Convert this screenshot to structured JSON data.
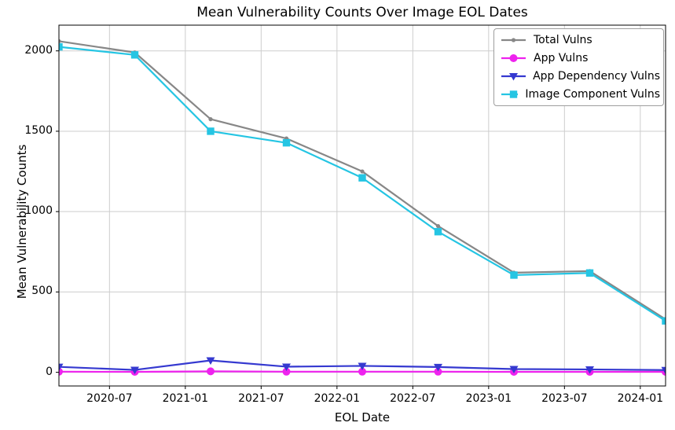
{
  "chart_data": {
    "type": "line",
    "title": "Mean Vulnerability Counts Over Image EOL Dates",
    "xlabel": "EOL Date",
    "ylabel": "Mean Vulnerability Counts",
    "x_dates": [
      "2020-03",
      "2020-09",
      "2021-03",
      "2021-09",
      "2022-03",
      "2022-09",
      "2023-03",
      "2023-09",
      "2024-03"
    ],
    "x_months": [
      0,
      6,
      12,
      18,
      24,
      30,
      36,
      42,
      48
    ],
    "xlim_months": [
      0,
      48
    ],
    "x_tick_labels": [
      "2020-07",
      "2021-01",
      "2021-07",
      "2022-01",
      "2022-07",
      "2023-01",
      "2023-07",
      "2024-01"
    ],
    "x_tick_months": [
      4,
      10,
      16,
      22,
      28,
      34,
      40,
      46
    ],
    "yticks": [
      0,
      500,
      1000,
      1500,
      2000
    ],
    "ytick_labels": [
      "0",
      "500",
      "1000",
      "1500",
      "2000"
    ],
    "ylim": [
      -85,
      2160
    ],
    "grid": true,
    "grid_color": "#cdcdcd",
    "axis_color": "#000000",
    "legend_position": "top-right",
    "series": [
      {
        "name": "Total Vulns",
        "color": "#878787",
        "marker": "dot",
        "values": [
          2060,
          1990,
          1575,
          1455,
          1250,
          910,
          620,
          630,
          330
        ]
      },
      {
        "name": "App Vulns",
        "color": "#ee22ee",
        "marker": "circle",
        "values": [
          4,
          3,
          6,
          4,
          4,
          4,
          3,
          3,
          3
        ]
      },
      {
        "name": "App Dependency Vulns",
        "color": "#3539d0",
        "marker": "triangle-down",
        "values": [
          34,
          15,
          74,
          35,
          40,
          33,
          20,
          18,
          14
        ]
      },
      {
        "name": "Image Component Vulns",
        "color": "#25c5e3",
        "marker": "square",
        "values": [
          2025,
          1975,
          1500,
          1428,
          1210,
          875,
          605,
          618,
          320
        ]
      }
    ]
  }
}
